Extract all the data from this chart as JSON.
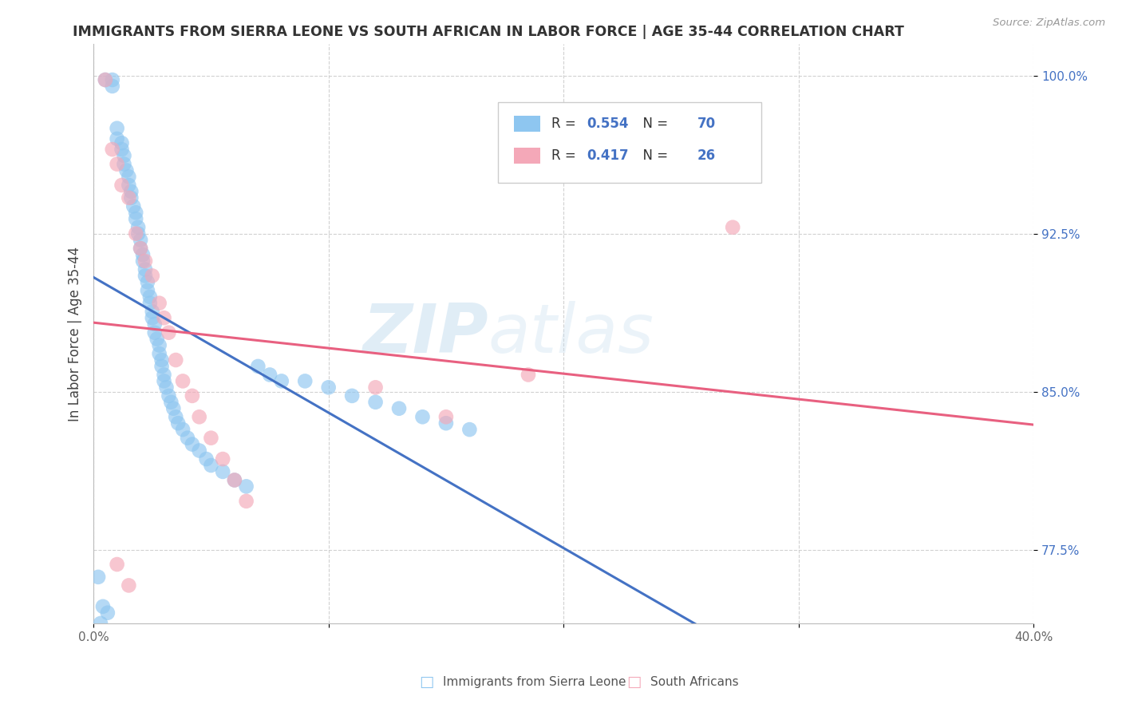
{
  "title": "IMMIGRANTS FROM SIERRA LEONE VS SOUTH AFRICAN IN LABOR FORCE | AGE 35-44 CORRELATION CHART",
  "source": "Source: ZipAtlas.com",
  "ylabel": "In Labor Force | Age 35-44",
  "xlim": [
    0.0,
    0.4
  ],
  "ylim": [
    0.74,
    1.015
  ],
  "xticks": [
    0.0,
    0.1,
    0.2,
    0.3,
    0.4
  ],
  "xticklabels": [
    "0.0%",
    "",
    "",
    "",
    "40.0%"
  ],
  "yticks": [
    0.775,
    0.85,
    0.925,
    1.0
  ],
  "yticklabels": [
    "77.5%",
    "85.0%",
    "92.5%",
    "100.0%"
  ],
  "legend_r1_val": "0.554",
  "legend_n1_val": "70",
  "legend_r2_val": "0.417",
  "legend_n2_val": "26",
  "color_blue": "#8EC6F0",
  "color_pink": "#F4A8B8",
  "line_blue": "#4472C4",
  "line_pink": "#E86080",
  "tick_color": "#4472C4",
  "watermark_zip": "ZIP",
  "watermark_atlas": "atlas",
  "bottom_label1": "Immigrants from Sierra Leone",
  "bottom_label2": "South Africans",
  "blue_x": [
    0.005,
    0.008,
    0.008,
    0.01,
    0.01,
    0.012,
    0.012,
    0.013,
    0.013,
    0.014,
    0.015,
    0.015,
    0.016,
    0.016,
    0.017,
    0.018,
    0.018,
    0.019,
    0.019,
    0.02,
    0.02,
    0.021,
    0.021,
    0.022,
    0.022,
    0.023,
    0.023,
    0.024,
    0.024,
    0.025,
    0.025,
    0.026,
    0.026,
    0.027,
    0.028,
    0.028,
    0.029,
    0.029,
    0.03,
    0.03,
    0.031,
    0.032,
    0.033,
    0.034,
    0.035,
    0.036,
    0.038,
    0.04,
    0.042,
    0.045,
    0.048,
    0.05,
    0.055,
    0.06,
    0.065,
    0.07,
    0.075,
    0.08,
    0.09,
    0.1,
    0.11,
    0.12,
    0.13,
    0.14,
    0.15,
    0.16,
    0.002,
    0.004,
    0.006,
    0.003
  ],
  "blue_y": [
    0.998,
    0.995,
    0.998,
    0.975,
    0.97,
    0.968,
    0.965,
    0.962,
    0.958,
    0.955,
    0.952,
    0.948,
    0.945,
    0.942,
    0.938,
    0.935,
    0.932,
    0.928,
    0.925,
    0.922,
    0.918,
    0.915,
    0.912,
    0.908,
    0.905,
    0.902,
    0.898,
    0.895,
    0.892,
    0.888,
    0.885,
    0.882,
    0.878,
    0.875,
    0.872,
    0.868,
    0.865,
    0.862,
    0.858,
    0.855,
    0.852,
    0.848,
    0.845,
    0.842,
    0.838,
    0.835,
    0.832,
    0.828,
    0.825,
    0.822,
    0.818,
    0.815,
    0.812,
    0.808,
    0.805,
    0.862,
    0.858,
    0.855,
    0.855,
    0.852,
    0.848,
    0.845,
    0.842,
    0.838,
    0.835,
    0.832,
    0.762,
    0.748,
    0.745,
    0.74
  ],
  "pink_x": [
    0.005,
    0.008,
    0.01,
    0.012,
    0.015,
    0.018,
    0.02,
    0.022,
    0.025,
    0.028,
    0.03,
    0.032,
    0.035,
    0.038,
    0.042,
    0.045,
    0.05,
    0.055,
    0.06,
    0.065,
    0.12,
    0.15,
    0.185,
    0.272,
    0.01,
    0.015
  ],
  "pink_y": [
    0.998,
    0.965,
    0.958,
    0.948,
    0.942,
    0.925,
    0.918,
    0.912,
    0.905,
    0.892,
    0.885,
    0.878,
    0.865,
    0.855,
    0.848,
    0.838,
    0.828,
    0.818,
    0.808,
    0.798,
    0.852,
    0.838,
    0.858,
    0.928,
    0.768,
    0.758
  ]
}
